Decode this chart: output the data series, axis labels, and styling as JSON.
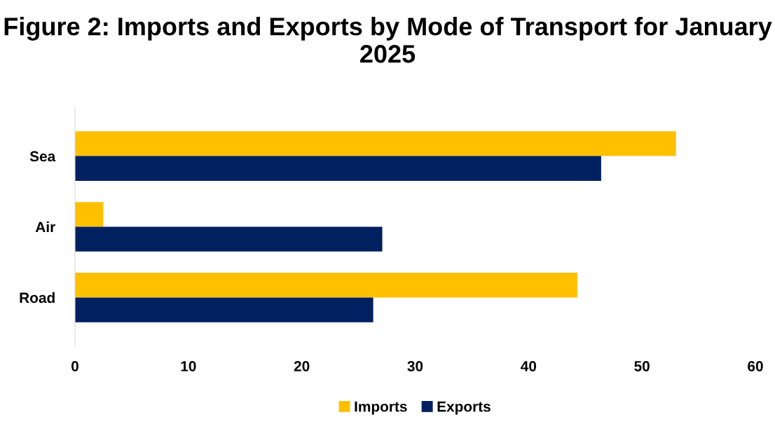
{
  "chart_data": {
    "type": "bar",
    "orientation": "horizontal",
    "title": "Figure 2: Imports and Exports by Mode of Transport for January 2025",
    "categories": [
      "Sea",
      "Air",
      "Road"
    ],
    "series": [
      {
        "name": "Imports",
        "color": "#ffc000",
        "values": [
          53.0,
          2.5,
          44.3
        ]
      },
      {
        "name": "Exports",
        "color": "#002060",
        "values": [
          46.4,
          27.1,
          26.3
        ]
      }
    ],
    "xlim": [
      0,
      60
    ],
    "xticks": [
      0,
      10,
      20,
      30,
      40,
      50,
      60
    ],
    "grid": false,
    "legend": "bottom"
  }
}
